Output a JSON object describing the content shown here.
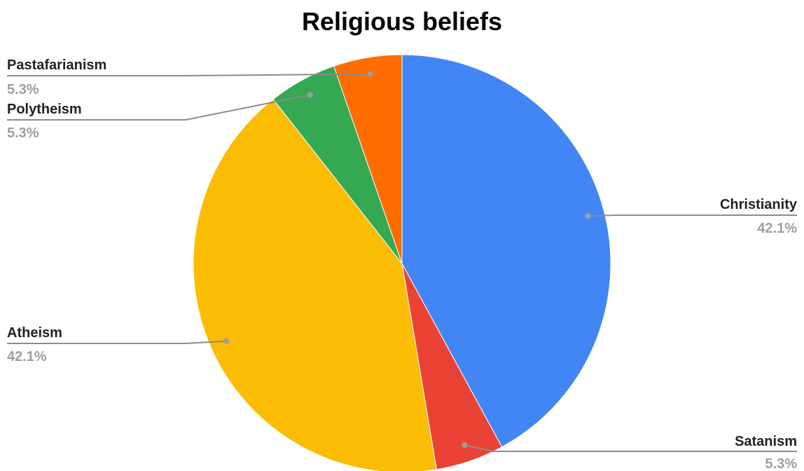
{
  "chart_data": {
    "type": "pie",
    "title": "Religious beliefs",
    "start_angle_deg": 0,
    "direction": "clockwise",
    "legend": "none",
    "slices": [
      {
        "label": "Christianity",
        "value": 42.1,
        "display": "42.1%",
        "color": "#4285F4"
      },
      {
        "label": "Satanism",
        "value": 5.3,
        "display": "5.3%",
        "color": "#EA4335"
      },
      {
        "label": "Atheism",
        "value": 42.1,
        "display": "42.1%",
        "color": "#FBBC04"
      },
      {
        "label": "Polytheism",
        "value": 5.3,
        "display": "5.3%",
        "color": "#34A853"
      },
      {
        "label": "Pastafarianism",
        "value": 5.3,
        "display": "5.3%",
        "color": "#FF6D01"
      }
    ]
  }
}
